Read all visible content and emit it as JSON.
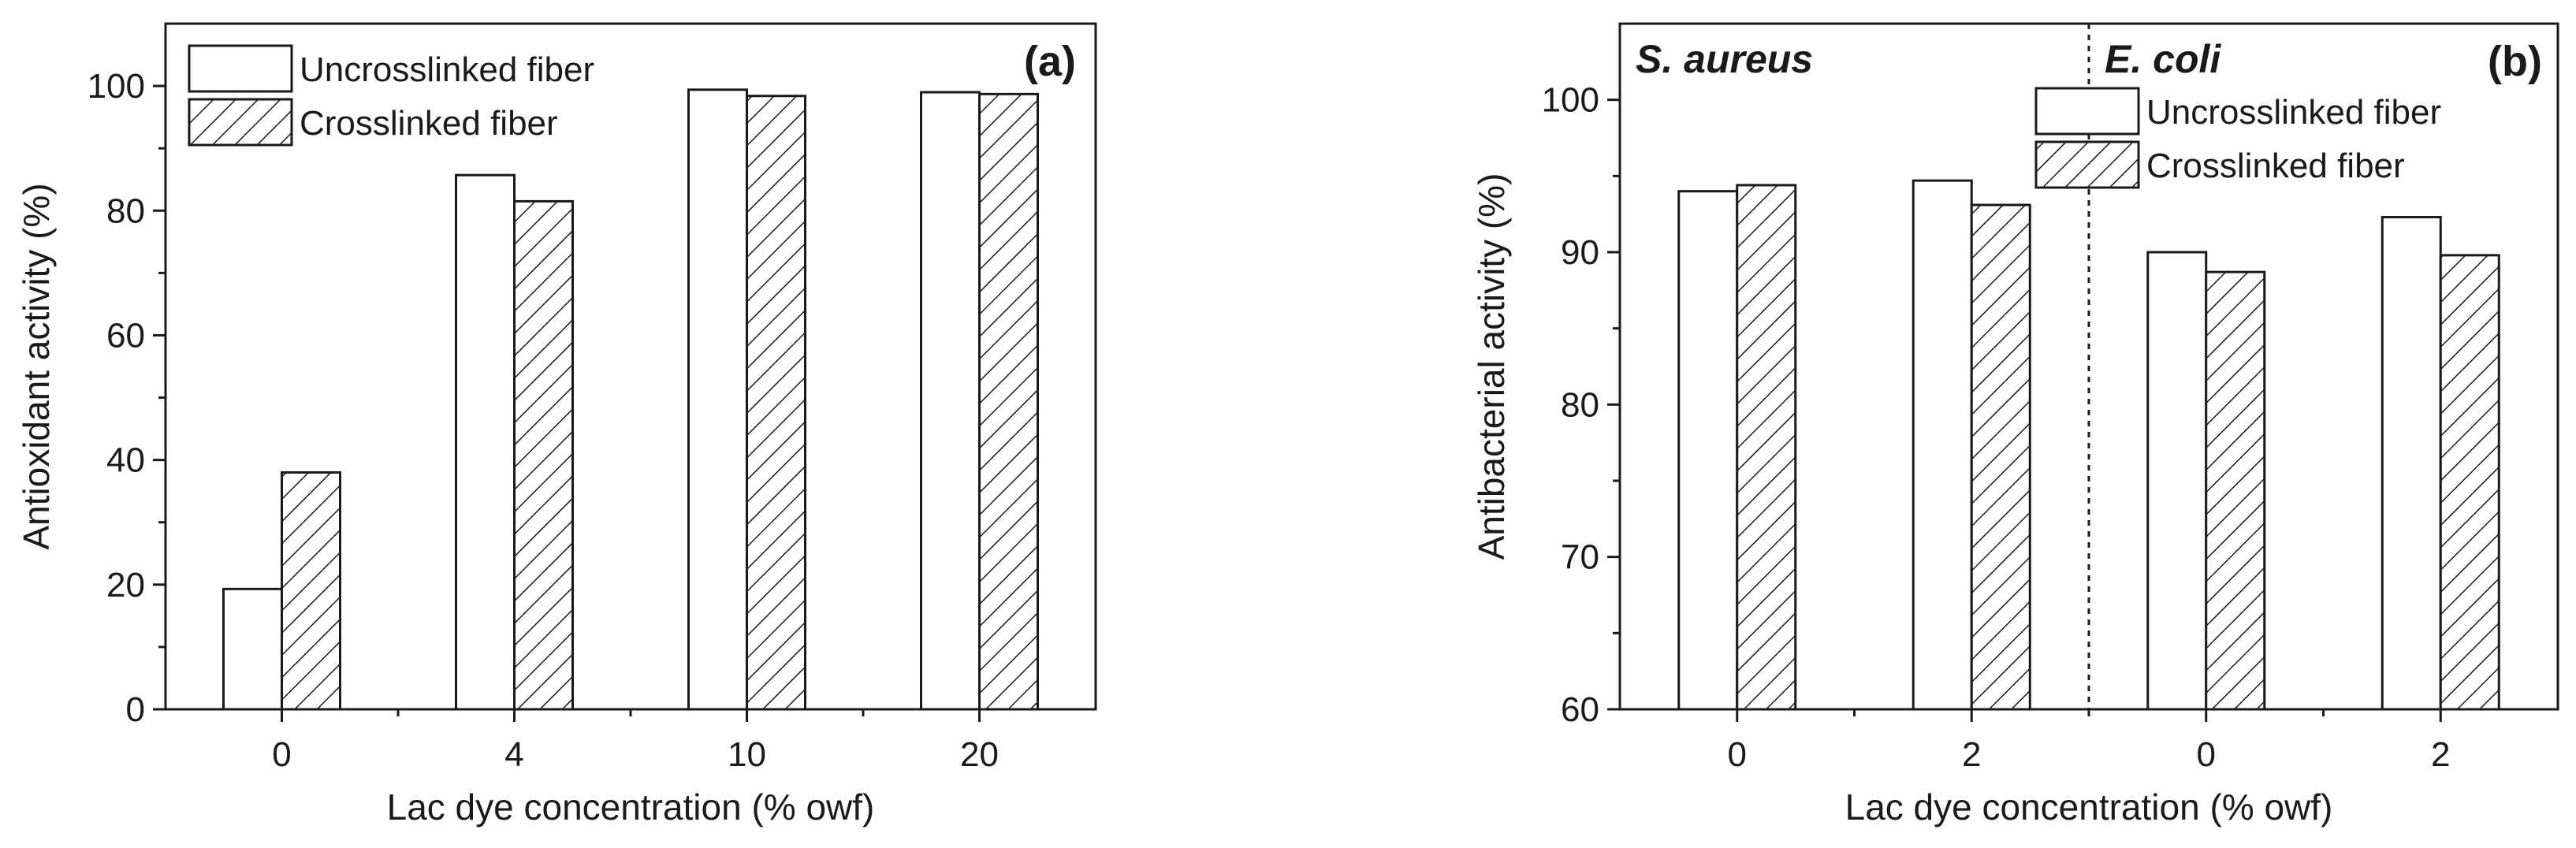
{
  "chart_data": [
    {
      "type": "bar",
      "panel_label": "(a)",
      "categories": [
        "0",
        "4",
        "10",
        "20"
      ],
      "series": [
        {
          "name": "Uncrosslinked fiber",
          "values": [
            19.3,
            85.7,
            99.4,
            99.0
          ]
        },
        {
          "name": "Crosslinked fiber",
          "values": [
            38.0,
            81.5,
            98.4,
            98.7
          ]
        }
      ],
      "xlabel": "Lac dye concentration (% owf)",
      "ylabel": "Antioxidant activity (%)",
      "ylim": [
        0,
        110
      ],
      "yticks": [
        0,
        20,
        40,
        60,
        80,
        100
      ],
      "grid": false,
      "legend_position": "top-left"
    },
    {
      "type": "bar",
      "panel_label": "(b)",
      "groups": [
        "S. aureus",
        "E. coli"
      ],
      "categories": [
        "0",
        "2",
        "0",
        "2"
      ],
      "series": [
        {
          "name": "Uncrosslinked fiber",
          "values": [
            94.0,
            94.7,
            90.0,
            92.3
          ]
        },
        {
          "name": "Crosslinked fiber",
          "values": [
            94.4,
            93.1,
            88.7,
            89.8
          ]
        }
      ],
      "xlabel": "Lac dye concentration (% owf)",
      "ylabel": "Antibacterial activity (%)",
      "ylim": [
        60,
        105
      ],
      "yticks": [
        60,
        70,
        80,
        90,
        100
      ],
      "grid": false,
      "legend_position": "top-right"
    }
  ],
  "colors": {
    "axis": "#1a1a1a",
    "bar_fill": "#ffffff",
    "hatch": "#1a1a1a"
  },
  "hatch_pattern": "diagonal-lines"
}
